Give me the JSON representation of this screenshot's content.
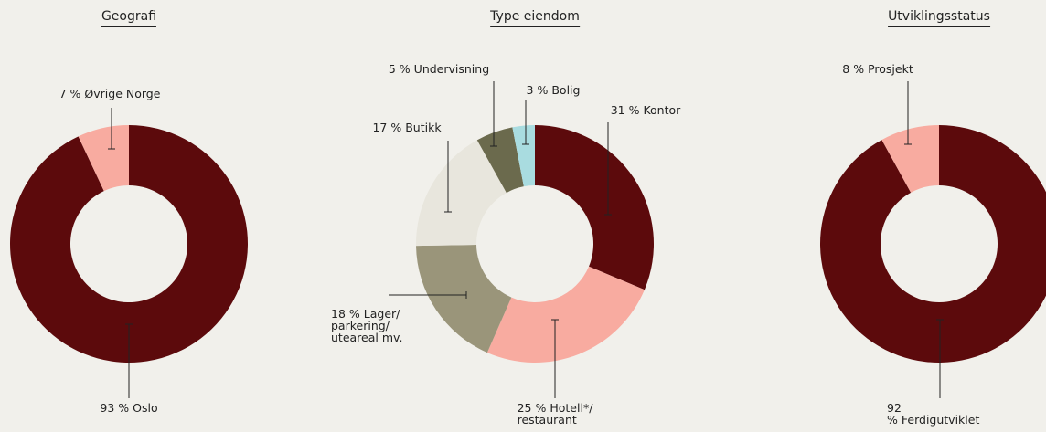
{
  "chart_data": [
    {
      "type": "donut",
      "title": "Geografi",
      "categories": [
        "Oslo",
        "Øvrige Norge"
      ],
      "values": [
        93,
        7
      ],
      "value_labels": [
        "93 %",
        "7 %"
      ],
      "colors": [
        "#5c0a0c",
        "#f8aba0"
      ]
    },
    {
      "type": "donut",
      "title": "Type eiendom",
      "categories": [
        "Kontor",
        "Hotell*/\nrestaurant",
        "Lager/\nparkering/\nuteareal mv.",
        "Butikk",
        "Undervisning",
        "Bolig"
      ],
      "values": [
        31,
        25,
        18,
        17,
        5,
        3
      ],
      "value_labels": [
        "31 %",
        "25 %",
        "18 %",
        "17 %",
        "5 %",
        "3 %"
      ],
      "colors": [
        "#5c0a0c",
        "#f8aba0",
        "#9a957a",
        "#e8e6dd",
        "#6b6a4d",
        "#a9dce0"
      ]
    },
    {
      "type": "donut",
      "title": "Utviklingsstatus",
      "categories": [
        "Ferdigutviklet",
        "Prosjekt"
      ],
      "values": [
        92,
        8
      ],
      "value_labels": [
        "92 %",
        "8 %"
      ],
      "colors": [
        "#5c0a0c",
        "#f8aba0"
      ]
    }
  ]
}
